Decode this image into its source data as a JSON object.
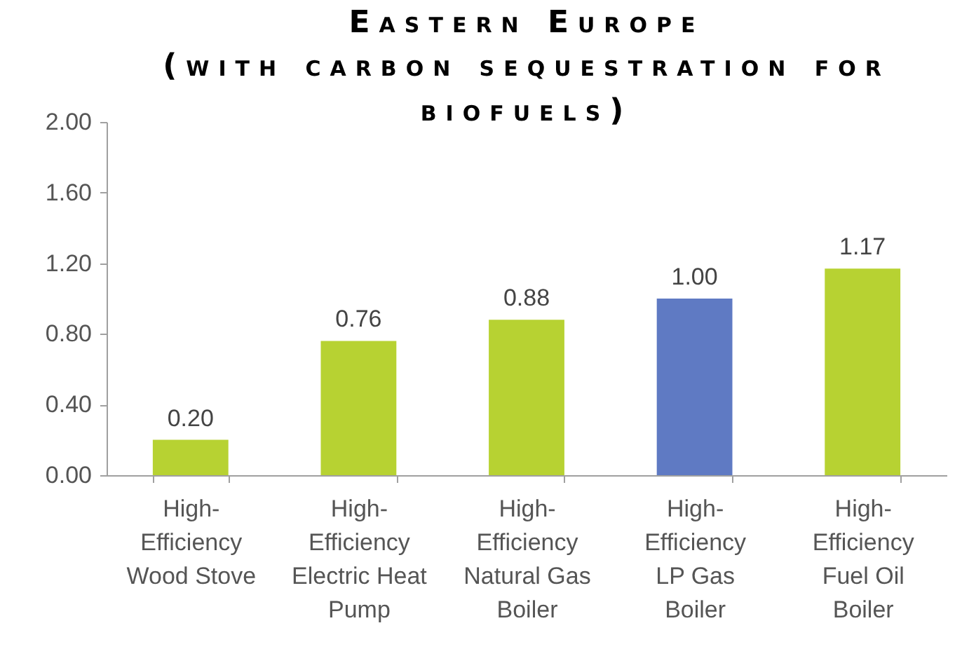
{
  "chart_data": {
    "type": "bar",
    "title": "Eastern Europe",
    "subtitle": "(with carbon sequestration for biofuels)",
    "categories": [
      "High-Efficiency Wood Stove",
      "High-Efficiency Electric Heat Pump",
      "High-Efficiency Natural Gas Boiler",
      "High-Efficiency LP Gas Boiler",
      "High-Efficiency Fuel Oil Boiler"
    ],
    "values": [
      0.2,
      0.76,
      0.88,
      1.0,
      1.17
    ],
    "colors": [
      "#b7d232",
      "#b7d232",
      "#b7d232",
      "#5f7ac3",
      "#b7d232"
    ],
    "value_labels": [
      "0.20",
      "0.76",
      "0.88",
      "1.00",
      "1.17"
    ],
    "ylim": [
      0,
      2
    ],
    "yticks": [
      {
        "value": 0,
        "label": "0.00"
      },
      {
        "value": 0.4,
        "label": "0.40"
      },
      {
        "value": 0.8,
        "label": "0.80"
      },
      {
        "value": 1.2,
        "label": "1.20"
      },
      {
        "value": 1.6,
        "label": "1.60"
      },
      {
        "value": 2,
        "label": "2.00"
      }
    ]
  }
}
